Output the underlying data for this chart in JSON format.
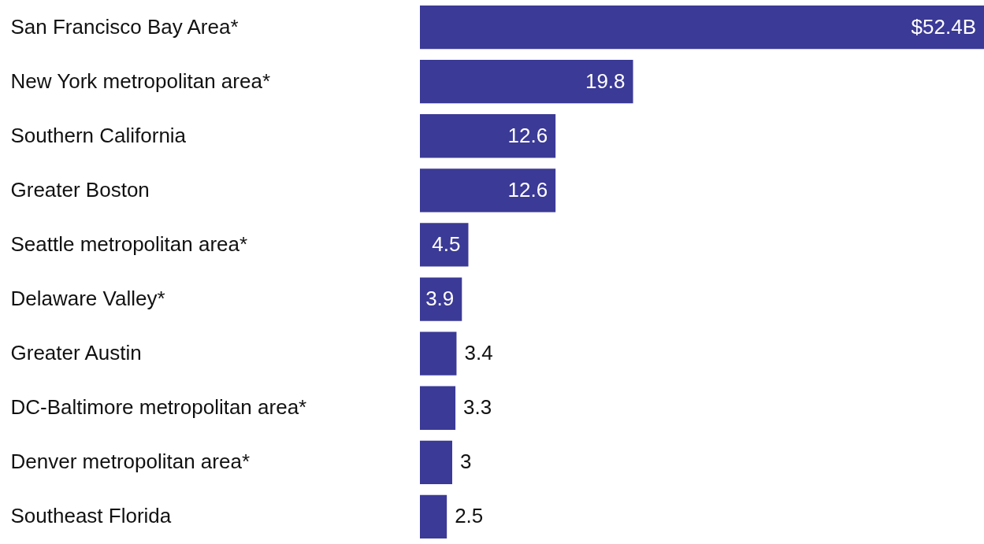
{
  "chart_data": {
    "type": "bar",
    "orientation": "horizontal",
    "categories": [
      "San Francisco Bay Area*",
      "New York metropolitan area*",
      "Southern California",
      "Greater Boston",
      "Seattle metropolitan area*",
      "Delaware Valley*",
      "Greater Austin",
      "DC-Baltimore metropolitan area*",
      "Denver metropolitan area*",
      "Southeast Florida"
    ],
    "values": [
      52.4,
      19.8,
      12.6,
      12.6,
      4.5,
      3.9,
      3.4,
      3.3,
      3,
      2.5
    ],
    "value_labels": [
      "$52.4B",
      "19.8",
      "12.6",
      "12.6",
      "4.5",
      "3.9",
      "3.4",
      "3.3",
      "3",
      "2.5"
    ],
    "color": "#3b3a96",
    "grid": false
  }
}
